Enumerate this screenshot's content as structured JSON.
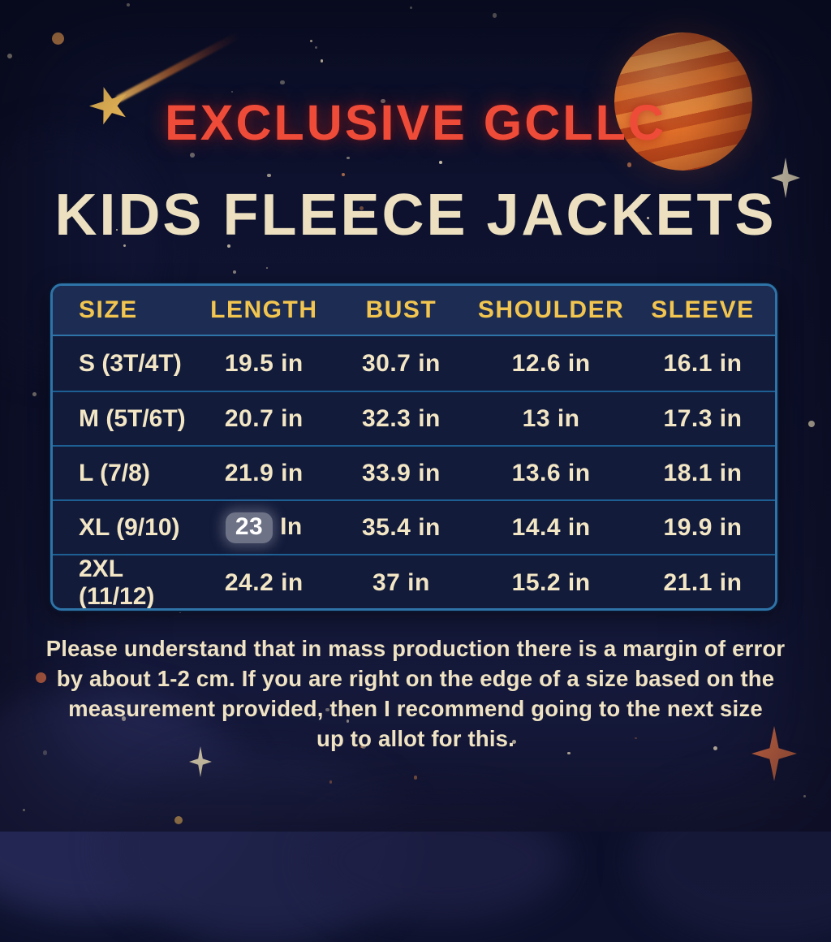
{
  "title": {
    "line1": "EXCLUSIVE GCLLC",
    "line2": "KIDS FLEECE JACKETS"
  },
  "size_chart": {
    "columns": [
      "SIZE",
      "LENGTH",
      "BUST",
      "SHOULDER",
      "SLEEVE"
    ],
    "rows": [
      {
        "size": "S (3T/4T)",
        "length": "19.5 in",
        "bust": "30.7 in",
        "shoulder": "12.6 in",
        "sleeve": "16.1 in"
      },
      {
        "size": "M (5T/6T)",
        "length": "20.7 in",
        "bust": "32.3 in",
        "shoulder": "13 in",
        "sleeve": "17.3 in"
      },
      {
        "size": "L (7/8)",
        "length": "21.9 in",
        "bust": "33.9 in",
        "shoulder": "13.6 in",
        "sleeve": "18.1 in"
      },
      {
        "size": "XL (9/10)",
        "length_value": "23",
        "length_unit": " In",
        "bust": "35.4 in",
        "shoulder": "14.4 in",
        "sleeve": "19.9 in"
      },
      {
        "size": "2XL (11/12)",
        "length": "24.2 in",
        "bust": "37 in",
        "shoulder": "15.2 in",
        "sleeve": "21.1 in"
      }
    ]
  },
  "note": {
    "lines": [
      "Please understand that in mass production there is a margin of error",
      "by about 1-2 cm. If you are right on the edge of a size based on the",
      "measurement provided, then I recommend going to the next size",
      "up to allot for this."
    ]
  },
  "decorations": {
    "planet_icon": "orange-striped-planet",
    "shooting_star_icon": "gold-star-with-comet-tail",
    "sparkle_icons": "four-point-star-sparkles",
    "star_dots": "scattered-star-dots"
  },
  "colors": {
    "background_navy": "#10142e",
    "title_red": "#ef4b39",
    "heading_cream": "#ece0c0",
    "table_gold": "#f1c54f",
    "table_border_blue": "#2e74a8",
    "table_row_navy": "#121b3a",
    "table_header_navy": "#1d2c52",
    "cell_cream": "#f3e6c5",
    "sparkle_orange": "#e2734a",
    "patch_gray": "#babac4"
  }
}
